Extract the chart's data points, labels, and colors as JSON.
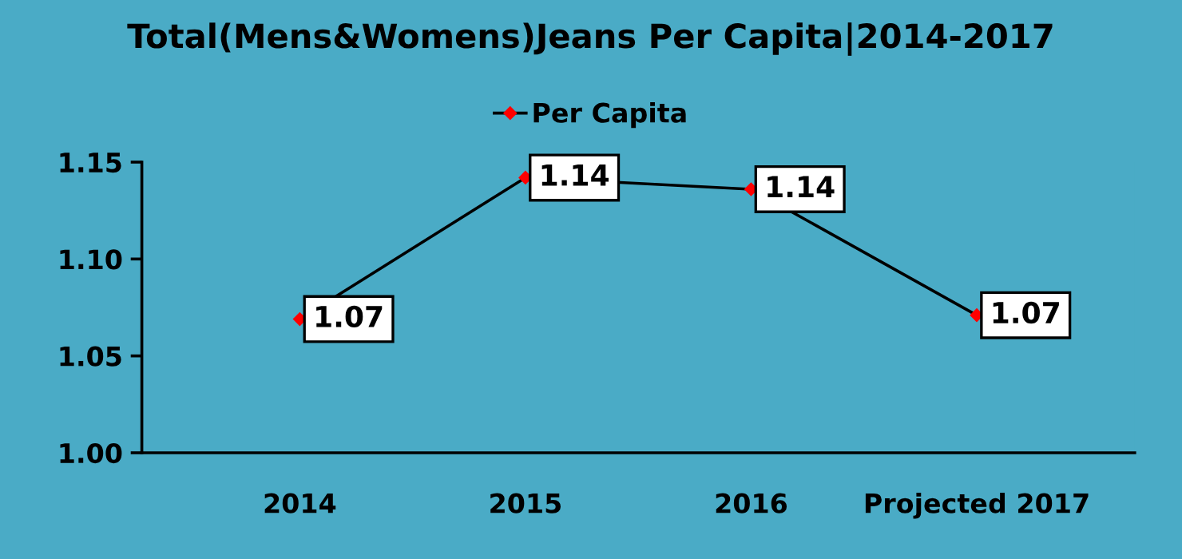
{
  "chart_data": {
    "type": "line",
    "title": "Total(Mens&Womens)Jeans Per Capita|2014-2017",
    "categories": [
      "2014",
      "2015",
      "2016",
      "Projected 2017"
    ],
    "series": [
      {
        "name": "Per Capita",
        "color": "#000000",
        "values": [
          1.069,
          1.142,
          1.136,
          1.071
        ],
        "value_labels": [
          "1.07",
          "1.14",
          "1.14",
          "1.07"
        ]
      }
    ],
    "ylim": [
      1.0,
      1.15
    ],
    "yticks": [
      {
        "value": 1.0,
        "label": "1.00"
      },
      {
        "value": 1.05,
        "label": "1.05"
      },
      {
        "value": 1.1,
        "label": "1.10"
      },
      {
        "value": 1.15,
        "label": "1.15"
      }
    ],
    "grid": false,
    "legend": "top",
    "marker": "diamond",
    "line_style": "solid"
  }
}
